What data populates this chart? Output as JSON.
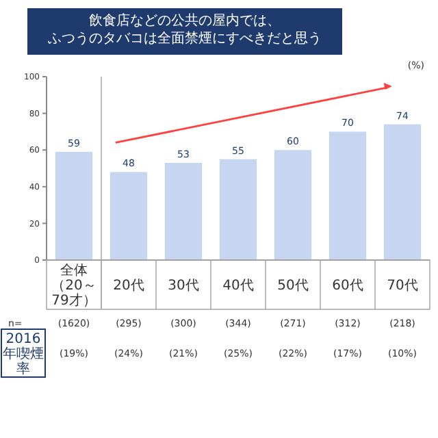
{
  "chart_data": {
    "type": "bar",
    "title": "飲食店などの公共の屋内では、ふつうのタバコは全面禁煙にすべきだと思う",
    "categories": [
      "全体（20～79才）",
      "20代",
      "30代",
      "40代",
      "50代",
      "60代",
      "70代"
    ],
    "values": [
      59,
      48,
      53,
      55,
      60,
      70,
      74
    ],
    "color": "#c6d6f0",
    "data_labels": true,
    "ylim": [
      0,
      100
    ],
    "yticks": [
      0,
      20,
      40,
      60,
      80,
      100
    ],
    "grid": false,
    "annotations": [
      "(%)",
      "n=",
      "2016年喫煙率",
      "(1620)",
      "(295)",
      "(300)",
      "(344)",
      "(271)",
      "(312)",
      "(218)",
      "(19%)",
      "(24%)",
      "(21%)",
      "(25%)",
      "(22%)",
      "(17%)",
      "(10%)"
    ]
  }
}
